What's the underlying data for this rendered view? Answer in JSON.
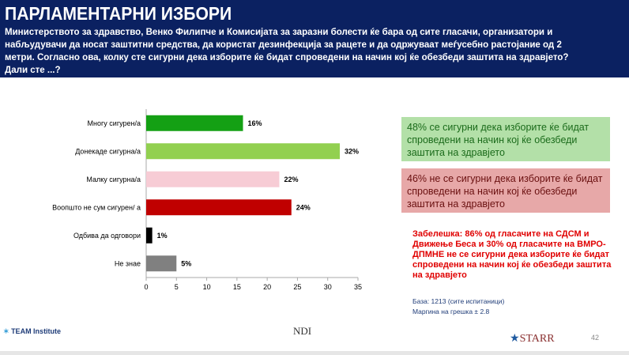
{
  "header": {
    "title": "ПАРЛАМЕНТАРНИ ИЗБОРИ",
    "question": "Министерството за здравство, Венко Филипче и Комисијата за заразни болести ќе бара од сите гласачи, организатори и набљудувачи да носат заштитни средства, да користат дезинфекција за рацете и да одржуваат меѓусебно растојание од 2 метри. Согласно ова, колку сте сигурни дека изборите ќе бидат спроведени на начин кој ќе обезбеди заштита на здравјето? Дали сте ...?"
  },
  "chart_data": {
    "type": "bar",
    "orientation": "horizontal",
    "categories": [
      "Многу сигурен/а",
      "Донекаде сигурна/а",
      "Малку сигурна/а",
      "Воопшто не сум сигурен/ а",
      "Одбива да одговори",
      "Не знае"
    ],
    "values": [
      16,
      32,
      22,
      24,
      1,
      5
    ],
    "value_labels": [
      "16%",
      "32%",
      "22%",
      "24%",
      "1%",
      "5%"
    ],
    "colors": [
      "#14a014",
      "#92d050",
      "#f7ccd5",
      "#c00000",
      "#000000",
      "#808080"
    ],
    "xlim": [
      0,
      35
    ],
    "xticks": [
      "0",
      "5",
      "10",
      "15",
      "20",
      "25",
      "30",
      "35"
    ]
  },
  "summary": {
    "sure": "48% се сигурни дека изборите ќе бидат спроведени на начин кој ќе обезбеди заштита на здравјето",
    "unsure": "46%  не се сигурни дека изборите ќе бидат спроведени на начин кој ќе обезбеди заштита на здравјето"
  },
  "note": "Забелешка: 86% од гласачите на СДСМ и Движење Беса и 30% од гласачите на ВМРО-ДПМНЕ не се сигурни дека изборите ќе бидат спроведени на начин кој ќе обезбеди заштита на здравјето",
  "base": "База: 1213 (сите испитаници)",
  "margin": "Маргина на грешка  ± 2.8",
  "logos": {
    "team": "TEAM Institute",
    "ndi": "NDI",
    "starr": "STARR"
  },
  "page_number": "42"
}
